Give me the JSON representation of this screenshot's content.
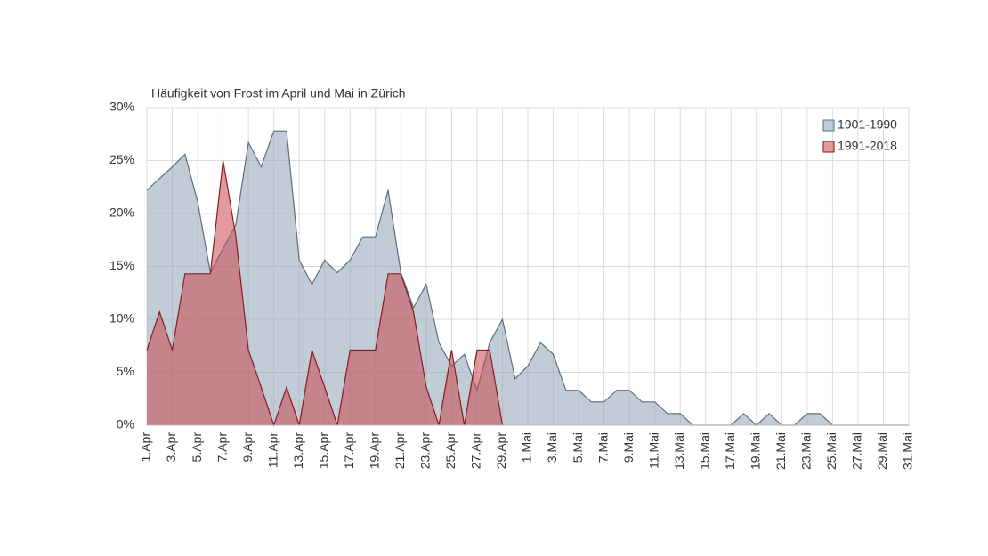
{
  "chart_data": {
    "type": "area",
    "title": "Häufigkeit von Frost im April und Mai in Zürich",
    "categories": [
      "1.Apr",
      null,
      "3.Apr",
      null,
      "5.Apr",
      null,
      "7.Apr",
      null,
      "9.Apr",
      null,
      "11.Apr",
      null,
      "13.Apr",
      null,
      "15.Apr",
      null,
      "17.Apr",
      null,
      "19.Apr",
      null,
      "21.Apr",
      null,
      "23.Apr",
      null,
      "25.Apr",
      null,
      "27.Apr",
      null,
      "29.Apr",
      null,
      "1.Mai",
      null,
      "3.Mai",
      null,
      "5.Mai",
      null,
      "7.Mai",
      null,
      "9.Mai",
      null,
      "11.Mai",
      null,
      "13.Mai",
      null,
      "15.Mai",
      null,
      "17.Mai",
      null,
      "19.Mai",
      null,
      "21.Mai",
      null,
      "23.Mai",
      null,
      "25.Mai",
      null,
      "27.Mai",
      null,
      "29.Mai",
      null,
      "31.Mai"
    ],
    "series": [
      {
        "name": "1901-1990",
        "color": "#8fa2b4",
        "line_color": "#5b6f82",
        "values": [
          22.2,
          23.3,
          24.4,
          25.6,
          21.1,
          14.4,
          16.7,
          18.9,
          26.7,
          24.4,
          27.8,
          27.8,
          15.6,
          13.3,
          15.6,
          14.4,
          15.6,
          17.8,
          17.8,
          22.2,
          14.4,
          11.1,
          13.3,
          7.8,
          5.6,
          6.7,
          3.3,
          7.8,
          10,
          4.4,
          5.6,
          7.8,
          6.7,
          3.3,
          3.3,
          2.2,
          2.2,
          3.3,
          3.3,
          2.2,
          2.2,
          1.1,
          1.1,
          0,
          0,
          0,
          0,
          1.1,
          0,
          1.1,
          0,
          0,
          1.1,
          1.1,
          0,
          0,
          0,
          0,
          0,
          0,
          0
        ]
      },
      {
        "name": "1991-2018",
        "color": "#c9474f",
        "line_color": "#8b1a1f",
        "values": [
          7.1,
          10.7,
          7.1,
          14.3,
          14.3,
          14.3,
          25,
          17.9,
          7.1,
          3.6,
          0,
          3.6,
          0,
          7.1,
          3.6,
          0,
          7.1,
          7.1,
          7.1,
          14.3,
          14.3,
          10.7,
          3.6,
          0,
          7.1,
          0,
          7.1,
          7.1,
          0,
          null,
          null,
          null,
          null,
          null,
          null,
          null,
          null,
          null,
          null,
          null,
          null,
          null,
          null,
          null,
          null,
          null,
          null,
          null,
          null,
          null,
          null,
          null,
          null,
          null,
          null,
          null,
          null,
          null,
          null,
          null,
          null
        ]
      }
    ],
    "ylim": [
      0,
      30
    ],
    "yticks": [
      {
        "value": 0,
        "label": "0%"
      },
      {
        "value": 5,
        "label": "5%"
      },
      {
        "value": 10,
        "label": "10%"
      },
      {
        "value": 15,
        "label": "15%"
      },
      {
        "value": 20,
        "label": "20%"
      },
      {
        "value": 25,
        "label": "25%"
      },
      {
        "value": 30,
        "label": "30%"
      }
    ],
    "grid": true,
    "legend": "top-right"
  }
}
